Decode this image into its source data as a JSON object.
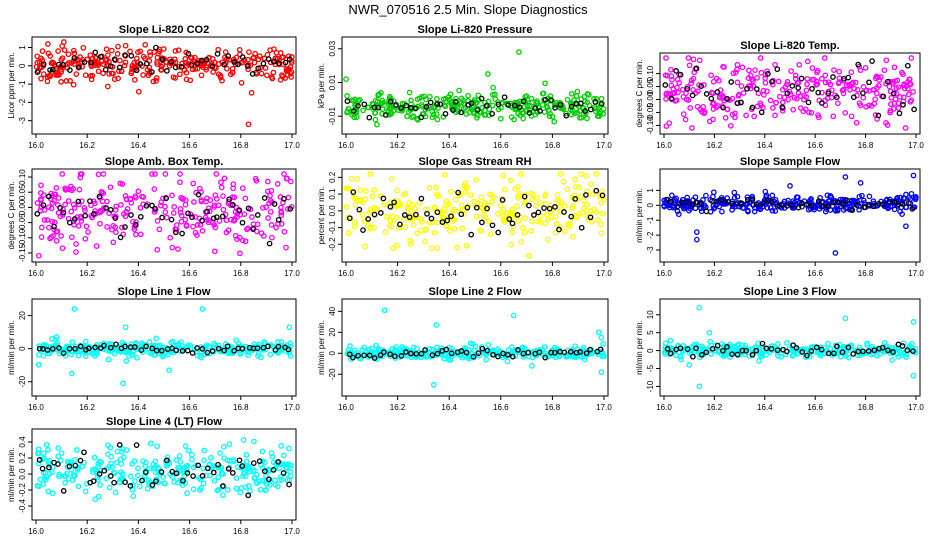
{
  "page": {
    "title": "NWR_070516  2.5 Min. Slope Diagnostics"
  },
  "colors": {
    "red": "#ff0000",
    "green": "#00cc00",
    "magenta": "#ff00ff",
    "yellow": "#ffff00",
    "blue": "#0000ff",
    "cyan": "#00ffff",
    "black": "#000000"
  },
  "chart_data": [
    {
      "type": "scatter",
      "title": "Slope Li-820 CO2",
      "ylabel": "Licor ppm per min.",
      "color": "red",
      "xlim": [
        16.0,
        17.0
      ],
      "ylim": [
        -3.4,
        1.3
      ],
      "xticks": [
        "16.0",
        "16.2",
        "16.4",
        "16.6",
        "16.8",
        "17.0"
      ],
      "yticks": [
        1,
        0,
        -1,
        -2,
        -3
      ],
      "ytick_labels": [
        "1",
        "0",
        "-1",
        "-2",
        "-3"
      ],
      "center": 0.1,
      "spread": 0.45,
      "black_spread": 0.3,
      "n": 300,
      "outliers": [
        [
          16.83,
          -3.2
        ],
        [
          16.02,
          -0.7
        ],
        [
          16.35,
          1.1
        ]
      ]
    },
    {
      "type": "scatter",
      "title": "Slope Li-820 Pressure",
      "ylabel": "kPa per min.",
      "color": "green",
      "xlim": [
        16.0,
        17.0
      ],
      "ylim": [
        -0.017,
        0.034
      ],
      "xticks": [
        "16.0",
        "16.2",
        "16.4",
        "16.6",
        "16.8",
        "17.0"
      ],
      "yticks": [
        0.03,
        0.01,
        -0.01
      ],
      "ytick_labels": [
        "0.03",
        "0.01",
        "-0.01"
      ],
      "center": -0.004,
      "spread": 0.004,
      "black_spread": 0.003,
      "n": 300,
      "outliers": [
        [
          16.67,
          0.028
        ],
        [
          16.12,
          -0.015
        ],
        [
          16.0,
          0.012
        ],
        [
          16.55,
          0.015
        ]
      ]
    },
    {
      "type": "scatter",
      "title": "Slope Li-820 Temp.",
      "ylabel": "degrees C per min.",
      "color": "magenta",
      "xlim": [
        16.0,
        17.0
      ],
      "ylim": [
        -0.11,
        0.16
      ],
      "xticks": [
        "16.0",
        "16.2",
        "16.4",
        "16.6",
        "16.8",
        "17.0"
      ],
      "yticks": [
        0.1,
        0.05,
        0.0,
        -0.05,
        -0.1
      ],
      "ytick_labels": [
        "0.10",
        "0.05",
        "0.00",
        "-0.05",
        "-0.10"
      ],
      "center": 0.03,
      "spread": 0.06,
      "black_spread": 0.05,
      "n": 300,
      "outliers": []
    },
    {
      "type": "scatter",
      "title": "Slope Amb. Box Temp.",
      "ylabel": "degrees C per min.",
      "color": "magenta",
      "xlim": [
        16.0,
        17.0
      ],
      "ylim": [
        -0.16,
        0.11
      ],
      "xticks": [
        "16.0",
        "16.2",
        "16.4",
        "16.6",
        "16.8",
        "17.0"
      ],
      "yticks": [
        0.1,
        0.05,
        0.0,
        -0.05,
        -0.1,
        -0.15
      ],
      "ytick_labels": [
        "0.10",
        "0.05",
        "0.00",
        "-0.05",
        "-0.10",
        "-0.15"
      ],
      "center": -0.005,
      "spread": 0.06,
      "black_spread": 0.04,
      "n": 300,
      "outliers": []
    },
    {
      "type": "scatter",
      "title": "Slope Gas Stream RH",
      "ylabel": "percent per min.",
      "color": "yellow",
      "xlim": [
        16.0,
        17.0
      ],
      "ylim": [
        -0.27,
        0.22
      ],
      "xticks": [
        "16.0",
        "16.2",
        "16.4",
        "16.6",
        "16.8",
        "17.0"
      ],
      "yticks": [
        0.2,
        0.1,
        0.0,
        -0.1,
        -0.2
      ],
      "ytick_labels": [
        "0.2",
        "0.1",
        "0.0",
        "-0.1",
        "-0.2"
      ],
      "center": 0.0,
      "spread": 0.1,
      "black_spread": 0.08,
      "n": 300,
      "outliers": []
    },
    {
      "type": "scatter",
      "title": "Slope Sample Flow",
      "ylabel": "ml/min per min.",
      "color": "blue",
      "xlim": [
        16.0,
        17.0
      ],
      "ylim": [
        -3.4,
        2.1
      ],
      "xticks": [
        "16.0",
        "16.2",
        "16.4",
        "16.6",
        "16.8",
        "17.0"
      ],
      "yticks": [
        1,
        0,
        -1,
        -2,
        -3
      ],
      "ytick_labels": [
        "1",
        "0",
        "-1",
        "-2",
        "-3"
      ],
      "center": 0.1,
      "spread": 0.3,
      "black_spread": 0.2,
      "n": 300,
      "outliers": [
        [
          16.13,
          -2.3
        ],
        [
          16.13,
          -1.8
        ],
        [
          16.72,
          1.9
        ],
        [
          16.96,
          -1.4
        ],
        [
          16.5,
          1.3
        ],
        [
          16.68,
          -3.2
        ],
        [
          16.99,
          2.0
        ],
        [
          16.78,
          1.5
        ]
      ]
    },
    {
      "type": "scatter",
      "title": "Slope Line 1 Flow",
      "ylabel": "ml/min per min.",
      "color": "cyan",
      "xlim": [
        16.0,
        17.0
      ],
      "ylim": [
        -25,
        27
      ],
      "xticks": [
        "16.0",
        "16.2",
        "16.4",
        "16.6",
        "16.8",
        "17.0"
      ],
      "yticks": [
        20,
        0,
        -20
      ],
      "ytick_labels": [
        "20",
        "0",
        "-20"
      ],
      "center": 0,
      "spread": 2.5,
      "black_spread": 1,
      "n": 300,
      "outliers": [
        [
          16.35,
          13
        ],
        [
          16.34,
          -21
        ],
        [
          16.65,
          24
        ],
        [
          16.14,
          -15
        ],
        [
          16.99,
          13
        ],
        [
          16.15,
          24
        ],
        [
          16.52,
          -13
        ]
      ]
    },
    {
      "type": "scatter",
      "title": "Slope Line 2 Flow",
      "ylabel": "ml/min per min.",
      "color": "cyan",
      "xlim": [
        16.0,
        17.0
      ],
      "ylim": [
        -35,
        47
      ],
      "xticks": [
        "16.0",
        "16.2",
        "16.4",
        "16.6",
        "16.8",
        "17.0"
      ],
      "yticks": [
        40,
        20,
        0,
        -20
      ],
      "ytick_labels": [
        "40",
        "20",
        "0",
        "-20"
      ],
      "center": 0,
      "spread": 3,
      "black_spread": 2,
      "n": 300,
      "outliers": [
        [
          16.15,
          41
        ],
        [
          16.34,
          -30
        ],
        [
          16.35,
          27
        ],
        [
          16.65,
          36
        ],
        [
          16.98,
          20
        ],
        [
          16.99,
          -18
        ],
        [
          16.99,
          15
        ],
        [
          16.72,
          -12
        ]
      ]
    },
    {
      "type": "scatter",
      "title": "Slope Line 3 Flow",
      "ylabel": "ml/min per min.",
      "color": "cyan",
      "xlim": [
        16.0,
        17.0
      ],
      "ylim": [
        -11,
        13
      ],
      "xticks": [
        "16.0",
        "16.2",
        "16.4",
        "16.6",
        "16.8",
        "17.0"
      ],
      "yticks": [
        10,
        5,
        0,
        -5,
        -10
      ],
      "ytick_labels": [
        "10",
        "5",
        "0",
        "-5",
        "-10"
      ],
      "center": 0,
      "spread": 1,
      "black_spread": 0.8,
      "n": 300,
      "outliers": [
        [
          16.14,
          12
        ],
        [
          16.14,
          -10
        ],
        [
          16.72,
          9
        ],
        [
          16.99,
          8
        ],
        [
          16.99,
          -7
        ],
        [
          16.1,
          -4
        ],
        [
          16.18,
          5
        ]
      ]
    },
    {
      "type": "scatter",
      "title": "Slope Line 4 (LT) Flow",
      "ylabel": "ml/min per min.",
      "color": "cyan",
      "xlim": [
        16.0,
        17.0
      ],
      "ylim": [
        -0.5,
        0.5
      ],
      "xticks": [
        "16.0",
        "16.2",
        "16.4",
        "16.6",
        "16.8",
        "17.0"
      ],
      "yticks": [
        0.4,
        0.2,
        0.0,
        -0.2,
        -0.4
      ],
      "ytick_labels": [
        "0.4",
        "0.2",
        "0.0",
        "-0.2",
        "-0.4"
      ],
      "center": 0.03,
      "spread": 0.14,
      "black_spread": 0.12,
      "n": 300,
      "outliers": []
    }
  ]
}
